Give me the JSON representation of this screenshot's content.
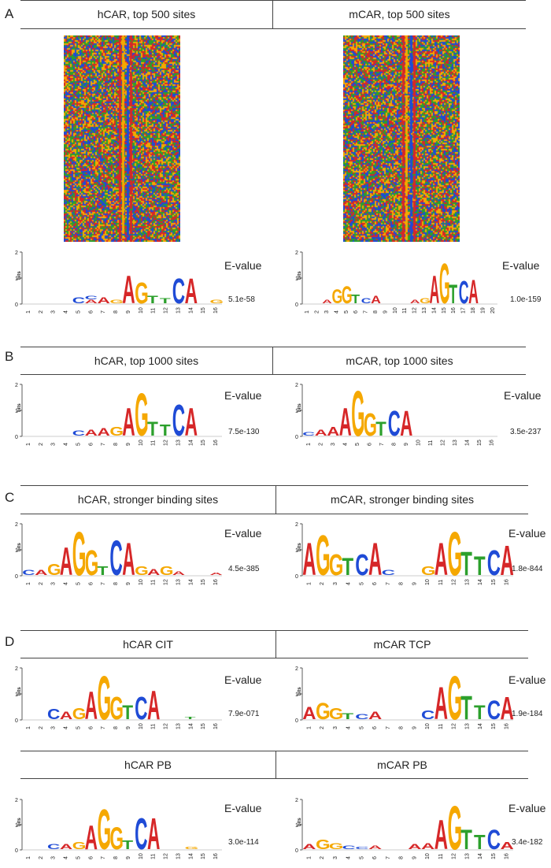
{
  "colors": {
    "A": "#d62728",
    "C": "#1f4bd6",
    "G": "#f5a800",
    "T": "#2ca02c",
    "line": "#444444"
  },
  "logo_common": {
    "ylabel": "bits",
    "y_ticks": [
      "0",
      "1",
      "2"
    ],
    "evalue_label": "E-value"
  },
  "rows": [
    {
      "letter": "A",
      "panels": [
        {
          "id": "A-left",
          "title": "hCAR, top 500 sites",
          "evalue": "5.1e-58",
          "positions": 16,
          "heatmap": {
            "motif_column_fraction": 0.52
          },
          "logo": [
            [],
            [],
            [],
            [],
            [
              [
                "C",
                0.25
              ]
            ],
            [
              [
                "A",
                0.15
              ],
              [
                "C",
                0.15
              ]
            ],
            [
              [
                "A",
                0.25
              ]
            ],
            [
              [
                "G",
                0.15
              ]
            ],
            [
              [
                "A",
                1.1
              ]
            ],
            [
              [
                "G",
                0.85
              ]
            ],
            [
              [
                "T",
                0.3
              ]
            ],
            [
              [
                "T",
                0.2
              ]
            ],
            [
              [
                "C",
                1.0
              ]
            ],
            [
              [
                "A",
                1.0
              ]
            ],
            [],
            [
              [
                "G",
                0.15
              ]
            ]
          ]
        },
        {
          "id": "A-right",
          "title": "mCAR, top 500 sites",
          "evalue": "1.0e-159",
          "positions": 20,
          "heatmap": {
            "motif_column_fraction": 0.55
          },
          "logo": [
            [],
            [],
            [
              [
                "A",
                0.15
              ]
            ],
            [
              [
                "G",
                0.55
              ]
            ],
            [
              [
                "G",
                0.7
              ]
            ],
            [
              [
                "T",
                0.35
              ]
            ],
            [
              [
                "C",
                0.2
              ]
            ],
            [
              [
                "A",
                0.3
              ]
            ],
            [],
            [],
            [],
            [
              [
                "A",
                0.15
              ]
            ],
            [
              [
                "G",
                0.2
              ]
            ],
            [
              [
                "A",
                1.1
              ]
            ],
            [
              [
                "G",
                1.6
              ]
            ],
            [
              [
                "T",
                0.75
              ]
            ],
            [
              [
                "C",
                0.9
              ]
            ],
            [
              [
                "A",
                0.95
              ]
            ],
            [],
            []
          ]
        }
      ]
    },
    {
      "letter": "B",
      "panels": [
        {
          "id": "B-left",
          "title": "hCAR, top 1000 sites",
          "evalue": "7.5e-130",
          "positions": 16,
          "logo": [
            [],
            [],
            [],
            [],
            [
              [
                "C",
                0.2
              ]
            ],
            [
              [
                "A",
                0.25
              ]
            ],
            [
              [
                "A",
                0.3
              ]
            ],
            [
              [
                "G",
                0.35
              ]
            ],
            [
              [
                "A",
                1.1
              ]
            ],
            [
              [
                "G",
                1.7
              ]
            ],
            [
              [
                "T",
                0.55
              ]
            ],
            [
              [
                "T",
                0.45
              ]
            ],
            [
              [
                "C",
                1.25
              ]
            ],
            [
              [
                "A",
                1.1
              ]
            ],
            [],
            []
          ]
        },
        {
          "id": "B-right",
          "title": "mCAR, top 1000 sites",
          "evalue": "3.5e-237",
          "positions": 16,
          "logo": [
            [
              [
                "C",
                0.15
              ]
            ],
            [
              [
                "A",
                0.25
              ]
            ],
            [
              [
                "A",
                0.35
              ]
            ],
            [
              [
                "A",
                1.1
              ]
            ],
            [
              [
                "G",
                1.8
              ]
            ],
            [
              [
                "G",
                0.9
              ]
            ],
            [
              [
                "T",
                0.55
              ]
            ],
            [
              [
                "C",
                1.0
              ]
            ],
            [
              [
                "A",
                1.0
              ]
            ],
            [],
            [],
            [],
            [],
            [],
            [],
            []
          ]
        }
      ]
    },
    {
      "letter": "C",
      "panels": [
        {
          "id": "C-left",
          "title": "hCAR, stronger binding sites",
          "evalue": "4.5e-385",
          "positions": 16,
          "logo": [
            [
              [
                "C",
                0.2
              ]
            ],
            [
              [
                "A",
                0.2
              ]
            ],
            [
              [
                "G",
                0.45
              ]
            ],
            [
              [
                "A",
                1.1
              ]
            ],
            [
              [
                "G",
                1.75
              ]
            ],
            [
              [
                "G",
                1.0
              ]
            ],
            [
              [
                "T",
                0.35
              ]
            ],
            [
              [
                "C",
                1.4
              ]
            ],
            [
              [
                "A",
                1.3
              ]
            ],
            [
              [
                "G",
                0.35
              ]
            ],
            [
              [
                "A",
                0.25
              ]
            ],
            [
              [
                "G",
                0.35
              ]
            ],
            [
              [
                "A",
                0.15
              ]
            ],
            [],
            [],
            [
              [
                "A",
                0.1
              ]
            ]
          ]
        },
        {
          "id": "C-right",
          "title": "mCAR, stronger binding sites",
          "evalue": "1.8e-844",
          "positions": 16,
          "logo": [
            [
              [
                "A",
                1.3
              ]
            ],
            [
              [
                "G",
                1.6
              ]
            ],
            [
              [
                "G",
                0.85
              ]
            ],
            [
              [
                "T",
                0.7
              ]
            ],
            [
              [
                "C",
                0.85
              ]
            ],
            [
              [
                "A",
                1.3
              ]
            ],
            [
              [
                "C",
                0.2
              ]
            ],
            [],
            [],
            [
              [
                "G",
                0.35
              ]
            ],
            [
              [
                "A",
                1.3
              ]
            ],
            [
              [
                "G",
                1.75
              ]
            ],
            [
              [
                "T",
                0.95
              ]
            ],
            [
              [
                "T",
                0.75
              ]
            ],
            [
              [
                "C",
                1.0
              ]
            ],
            [
              [
                "A",
                1.2
              ]
            ]
          ]
        }
      ]
    },
    {
      "letter": "D",
      "panels": [
        {
          "id": "D-left",
          "title": "hCAR CIT",
          "evalue": "7.9e-071",
          "positions": 16,
          "logo": [
            [],
            [],
            [
              [
                "C",
                0.4
              ]
            ],
            [
              [
                "A",
                0.3
              ]
            ],
            [
              [
                "G",
                0.45
              ]
            ],
            [
              [
                "A",
                1.1
              ]
            ],
            [
              [
                "G",
                1.75
              ]
            ],
            [
              [
                "G",
                0.9
              ]
            ],
            [
              [
                "T",
                0.55
              ]
            ],
            [
              [
                "C",
                0.9
              ]
            ],
            [
              [
                "A",
                1.15
              ]
            ],
            [],
            [],
            [
              [
                "T",
                0.1
              ]
            ],
            [],
            []
          ]
        },
        {
          "id": "D-right",
          "title": "mCAR TCP",
          "evalue": "1.9e-184",
          "positions": 16,
          "logo": [
            [
              [
                "A",
                0.5
              ]
            ],
            [
              [
                "G",
                0.65
              ]
            ],
            [
              [
                "G",
                0.45
              ]
            ],
            [
              [
                "T",
                0.25
              ]
            ],
            [
              [
                "C",
                0.2
              ]
            ],
            [
              [
                "A",
                0.3
              ]
            ],
            [],
            [],
            [],
            [
              [
                "C",
                0.35
              ]
            ],
            [
              [
                "A",
                1.3
              ]
            ],
            [
              [
                "G",
                1.75
              ]
            ],
            [
              [
                "T",
                0.95
              ]
            ],
            [
              [
                "T",
                0.55
              ]
            ],
            [
              [
                "C",
                0.75
              ]
            ],
            [
              [
                "A",
                0.9
              ]
            ]
          ]
        }
      ]
    },
    {
      "letter": "",
      "panels": [
        {
          "id": "E-left",
          "title": "hCAR PB",
          "evalue": "3.0e-114",
          "positions": 16,
          "logo": [
            [],
            [],
            [
              [
                "C",
                0.2
              ]
            ],
            [
              [
                "A",
                0.2
              ]
            ],
            [
              [
                "G",
                0.3
              ]
            ],
            [
              [
                "A",
                1.0
              ]
            ],
            [
              [
                "G",
                1.65
              ]
            ],
            [
              [
                "G",
                0.9
              ]
            ],
            [
              [
                "T",
                0.35
              ]
            ],
            [
              [
                "C",
                1.3
              ]
            ],
            [
              [
                "A",
                1.3
              ]
            ],
            [],
            [],
            [
              [
                "G",
                0.1
              ]
            ],
            [],
            []
          ]
        },
        {
          "id": "E-right",
          "title": "mCAR PB",
          "evalue": "3.4e-182",
          "positions": 16,
          "logo": [
            [
              [
                "A",
                0.2
              ]
            ],
            [
              [
                "G",
                0.4
              ]
            ],
            [
              [
                "G",
                0.25
              ]
            ],
            [
              [
                "C",
                0.15
              ]
            ],
            [
              [
                "C",
                0.1
              ]
            ],
            [
              [
                "A",
                0.15
              ]
            ],
            [],
            [],
            [
              [
                "A",
                0.2
              ]
            ],
            [
              [
                "A",
                0.25
              ]
            ],
            [
              [
                "A",
                1.2
              ]
            ],
            [
              [
                "G",
                1.8
              ]
            ],
            [
              [
                "T",
                0.8
              ]
            ],
            [
              [
                "T",
                0.6
              ]
            ],
            [
              [
                "C",
                0.8
              ]
            ],
            [
              [
                "A",
                0.3
              ]
            ]
          ]
        }
      ]
    }
  ]
}
